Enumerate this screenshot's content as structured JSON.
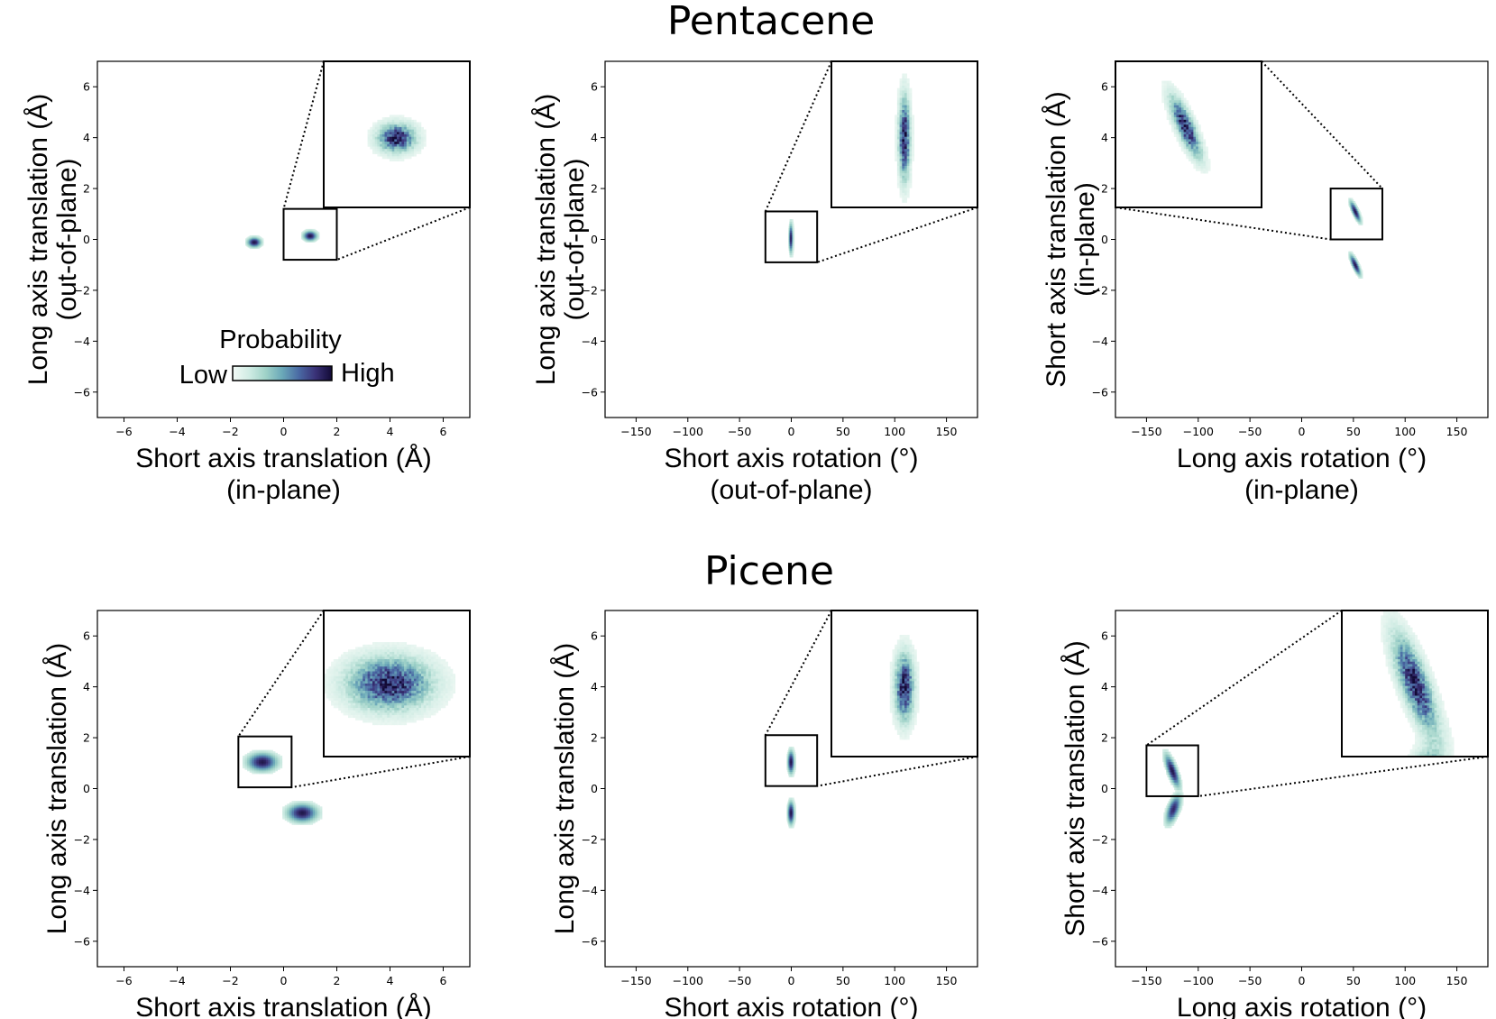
{
  "figure": {
    "sections": [
      {
        "title": "Pentacene"
      },
      {
        "title": "Picene"
      }
    ],
    "legend": {
      "title": "Probability",
      "low_label": "Low",
      "high_label": "High"
    }
  },
  "colormap": [
    "#f3faf6",
    "#d0ece4",
    "#9fd2c8",
    "#6aa8b8",
    "#4a6aa4",
    "#3a3278",
    "#120a36"
  ],
  "chart_data": [
    {
      "type": "heatmap",
      "molecule": "Pentacene",
      "row": 0,
      "col": 0,
      "xlabel_line1": "Short axis translation (Å)",
      "xlabel_line2": "(in-plane)",
      "ylabel_line1": "Long axis translation (Å)",
      "ylabel_line2": "(out-of-plane)",
      "xlim": [
        -7,
        7
      ],
      "ylim": [
        -7,
        7
      ],
      "xticks": [
        -6,
        -4,
        -2,
        0,
        2,
        4,
        6
      ],
      "yticks": [
        -6,
        -4,
        -2,
        0,
        2,
        4,
        6
      ],
      "clusters": [
        {
          "x": -1.1,
          "y": -0.1,
          "sx": 0.16,
          "sy": 0.12,
          "rho": 0,
          "weight": 1.0
        },
        {
          "x": 1.0,
          "y": 0.15,
          "sx": 0.16,
          "sy": 0.12,
          "rho": 0,
          "weight": 1.0
        }
      ],
      "zoom_region": {
        "x": [
          0,
          2
        ],
        "y": [
          -0.8,
          1.2
        ]
      },
      "inset": {
        "corner": "top-right",
        "xlim": [
          0,
          2
        ],
        "ylim": [
          -0.8,
          1.2
        ]
      }
    },
    {
      "type": "heatmap",
      "molecule": "Pentacene",
      "row": 0,
      "col": 1,
      "xlabel_line1": "Short axis rotation (°)",
      "xlabel_line2": "(out-of-plane)",
      "ylabel_line1": "Long axis translation (Å)",
      "ylabel_line2": "(out-of-plane)",
      "xlim": [
        -180,
        180
      ],
      "ylim": [
        -7,
        7
      ],
      "xticks": [
        -150,
        -100,
        -50,
        0,
        50,
        100,
        150
      ],
      "yticks": [
        -6,
        -4,
        -2,
        0,
        2,
        4,
        6
      ],
      "clusters": [
        {
          "x": 0,
          "y": 0.05,
          "sx": 1.2,
          "sy": 0.35,
          "rho": 0,
          "weight": 1.0
        }
      ],
      "zoom_region": {
        "x": [
          -25,
          25
        ],
        "y": [
          -0.9,
          1.1
        ]
      },
      "inset": {
        "corner": "top-right",
        "xlim": [
          -25,
          25
        ],
        "ylim": [
          -0.9,
          1.1
        ]
      }
    },
    {
      "type": "heatmap",
      "molecule": "Pentacene",
      "row": 0,
      "col": 2,
      "xlabel_line1": "Long axis rotation (°)",
      "xlabel_line2": "(in-plane)",
      "ylabel_line1": "Short axis translation (Å)",
      "ylabel_line2": "(in-plane)",
      "xlim": [
        -180,
        180
      ],
      "ylim": [
        -7,
        7
      ],
      "xticks": [
        -150,
        -100,
        -50,
        0,
        50,
        100,
        150
      ],
      "yticks": [
        -6,
        -4,
        -2,
        0,
        2,
        4,
        6
      ],
      "clusters": [
        {
          "x": 52,
          "y": 1.1,
          "sx": 3.2,
          "sy": 0.25,
          "rho": -0.8,
          "weight": 1.0
        },
        {
          "x": 52,
          "y": -1.0,
          "sx": 3.2,
          "sy": 0.25,
          "rho": -0.8,
          "weight": 1.0
        }
      ],
      "zoom_region": {
        "x": [
          28,
          78
        ],
        "y": [
          0,
          2
        ]
      },
      "inset": {
        "corner": "top-left",
        "xlim": [
          28,
          78
        ],
        "ylim": [
          0,
          2
        ]
      }
    },
    {
      "type": "heatmap",
      "molecule": "Picene",
      "row": 1,
      "col": 0,
      "xlabel_line1": "Short axis translation (Å)",
      "xlabel_line2": "",
      "ylabel_line1": "Long axis translation (Å)",
      "ylabel_line2": "",
      "xlim": [
        -7,
        7
      ],
      "ylim": [
        -7,
        7
      ],
      "xticks": [
        -6,
        -4,
        -2,
        0,
        2,
        4,
        6
      ],
      "yticks": [
        -6,
        -4,
        -2,
        0,
        2,
        4,
        6
      ],
      "clusters": [
        {
          "x": -0.8,
          "y": 1.05,
          "sx": 0.35,
          "sy": 0.22,
          "rho": 0,
          "weight": 1.0
        },
        {
          "x": 0.7,
          "y": -0.95,
          "sx": 0.35,
          "sy": 0.22,
          "rho": 0,
          "weight": 1.0
        }
      ],
      "zoom_region": {
        "x": [
          -1.7,
          0.3
        ],
        "y": [
          0.05,
          2.05
        ]
      },
      "inset": {
        "corner": "top-right",
        "xlim": [
          -1.7,
          0.3
        ],
        "ylim": [
          0.05,
          2.05
        ]
      }
    },
    {
      "type": "heatmap",
      "molecule": "Picene",
      "row": 1,
      "col": 1,
      "xlabel_line1": "Short axis rotation (°)",
      "xlabel_line2": "",
      "ylabel_line1": "Long axis translation (Å)",
      "ylabel_line2": "",
      "xlim": [
        -180,
        180
      ],
      "ylim": [
        -7,
        7
      ],
      "xticks": [
        -150,
        -100,
        -50,
        0,
        50,
        100,
        150
      ],
      "yticks": [
        -6,
        -4,
        -2,
        0,
        2,
        4,
        6
      ],
      "clusters": [
        {
          "x": 0,
          "y": 1.05,
          "sx": 2.0,
          "sy": 0.28,
          "rho": 0,
          "weight": 1.0
        },
        {
          "x": 0,
          "y": -0.95,
          "sx": 2.0,
          "sy": 0.28,
          "rho": 0,
          "weight": 1.0
        }
      ],
      "zoom_region": {
        "x": [
          -25,
          25
        ],
        "y": [
          0.1,
          2.1
        ]
      },
      "inset": {
        "corner": "top-right",
        "xlim": [
          -25,
          25
        ],
        "ylim": [
          0.1,
          2.1
        ]
      }
    },
    {
      "type": "heatmap",
      "molecule": "Picene",
      "row": 1,
      "col": 2,
      "xlabel_line1": "Long axis rotation (°)",
      "xlabel_line2": "",
      "ylabel_line1": "Short axis translation (Å)",
      "ylabel_line2": "",
      "xlim": [
        -180,
        180
      ],
      "ylim": [
        -7,
        7
      ],
      "xticks": [
        -150,
        -100,
        -50,
        0,
        50,
        100,
        150
      ],
      "yticks": [
        -6,
        -4,
        -2,
        0,
        2,
        4,
        6
      ],
      "clusters": [
        {
          "x": -125,
          "y": 0.7,
          "sx": 4.5,
          "sy": 0.4,
          "rho": -0.75,
          "weight": 1.0
        },
        {
          "x": -124,
          "y": -0.8,
          "sx": 4.5,
          "sy": 0.35,
          "rho": 0.6,
          "weight": 0.9
        }
      ],
      "zoom_region": {
        "x": [
          -150,
          -100
        ],
        "y": [
          -0.3,
          1.7
        ]
      },
      "inset": {
        "corner": "top-right",
        "xlim": [
          -150,
          -100
        ],
        "ylim": [
          -0.3,
          1.7
        ]
      }
    }
  ]
}
